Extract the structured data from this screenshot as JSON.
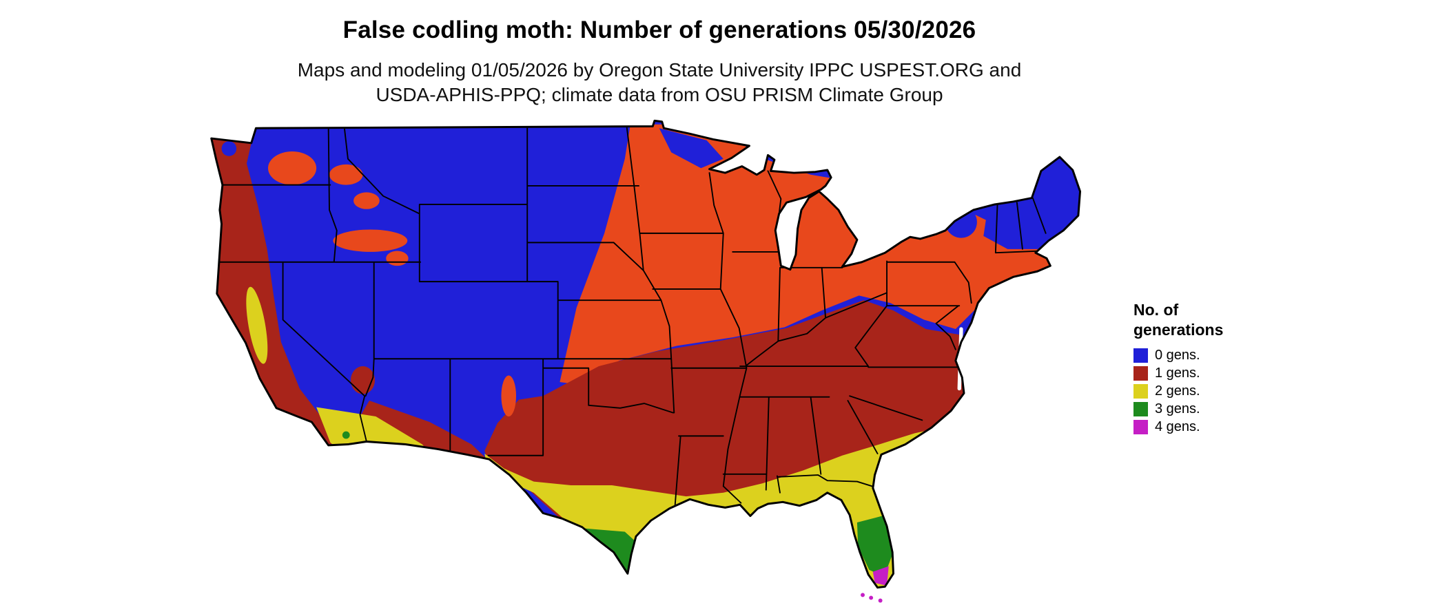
{
  "title": "False codling moth: Number of generations 05/30/2026",
  "subtitle": {
    "line1": "Maps and modeling 01/05/2026 by Oregon State University IPPC USPEST.ORG and",
    "line2": "USDA-APHIS-PPQ; climate data from OSU PRISM Climate Group"
  },
  "legend": {
    "title_line1": "No. of",
    "title_line2": "generations",
    "items": [
      {
        "label": "0 gens.",
        "color_key": "gen0",
        "color": "#2020d8"
      },
      {
        "label": "1 gens.",
        "color_key": "gen1",
        "color": "#a8241a"
      },
      {
        "label": "2 gens.",
        "color_key": "gen2",
        "color": "#dcd11e"
      },
      {
        "label": "3 gens.",
        "color_key": "gen3",
        "color": "#1e8b1e"
      },
      {
        "label": "4 gens.",
        "color_key": "gen4",
        "color": "#c51fc5"
      }
    ]
  },
  "colors": {
    "gen0": "#2020d8",
    "gen1": "#a8241a",
    "gen2": "#dcd11e",
    "gen3": "#1e8b1e",
    "gen4": "#c51fc5",
    "transition": "#e8481c",
    "border": "#000000",
    "background": "#ffffff"
  },
  "map": {
    "description": "Choropleth map of the contiguous United States shaded by modeled number of false codling moth generations; 0 generations (blue) across the north and mountain west, transitional orange band across the upper Midwest and Northeast, 1 generation (dark red) across the mid-latitudes and west coast, 2 generations (yellow) across the south, 3 generations (green) in south Texas and central/south Florida, 4 generations (magenta) at the southern tip of Florida."
  }
}
